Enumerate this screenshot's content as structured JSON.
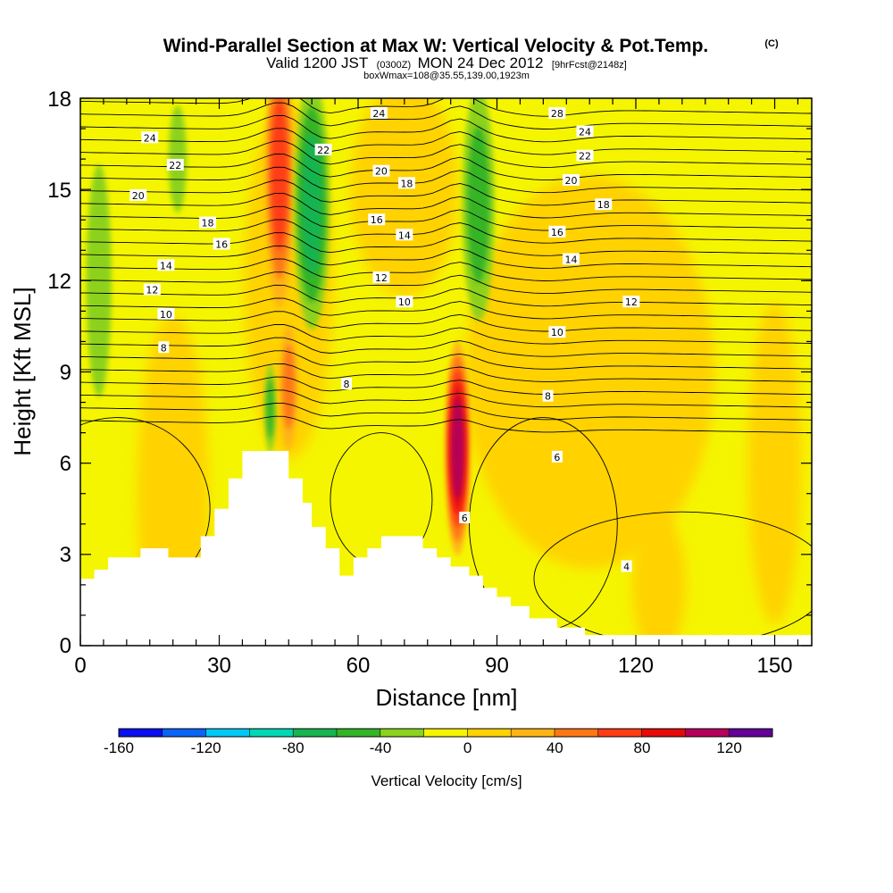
{
  "header": {
    "title": "Wind-Parallel Section at Max W: Vertical Velocity & Pot.Temp.",
    "title_mark": "(C)",
    "valid_prefix": "Valid 1200 JST",
    "valid_zulu": "(0300Z)",
    "valid_date": "MON 24 Dec 2012",
    "valid_fcst": "[9hrFcst@2148z]",
    "box_info": "boxWmax=108@35.55,139.00,1923m"
  },
  "chart_data": {
    "type": "heatmap",
    "xlabel": "Distance [nm]",
    "ylabel": "Height [Kft MSL]",
    "xlim": [
      0,
      158
    ],
    "ylim": [
      0,
      18
    ],
    "x_ticks": [
      "0",
      "30",
      "60",
      "90",
      "120",
      "150"
    ],
    "y_ticks": [
      "0",
      "3",
      "6",
      "9",
      "12",
      "15",
      "18"
    ],
    "colorbar": {
      "label": "Vertical Velocity [cm/s]",
      "tick_labels": [
        "-160",
        "-120",
        "-80",
        "-40",
        "0",
        "40",
        "80",
        "120"
      ],
      "levels": [
        -160,
        -140,
        -120,
        -100,
        -80,
        -60,
        -40,
        -20,
        0,
        20,
        40,
        60,
        80,
        100,
        120,
        140
      ],
      "colors": [
        "#0a10f0",
        "#0a64f5",
        "#00c8f5",
        "#00d8b4",
        "#18b450",
        "#34b428",
        "#8cd21e",
        "#f5f500",
        "#ffd200",
        "#ffb414",
        "#ff7814",
        "#ff3c14",
        "#e60a0a",
        "#b4005a",
        "#640096"
      ]
    },
    "terrain_kft": [
      [
        0,
        2.2
      ],
      [
        3,
        2.5
      ],
      [
        6,
        2.9
      ],
      [
        13,
        3.2
      ],
      [
        19,
        2.9
      ],
      [
        26,
        3.6
      ],
      [
        29,
        4.5
      ],
      [
        32,
        5.5
      ],
      [
        35,
        6.4
      ],
      [
        45,
        5.5
      ],
      [
        48,
        4.7
      ],
      [
        50,
        3.9
      ],
      [
        53,
        3.2
      ],
      [
        56,
        2.3
      ],
      [
        59,
        2.9
      ],
      [
        62,
        3.2
      ],
      [
        65,
        3.6
      ],
      [
        74,
        3.2
      ],
      [
        77,
        2.9
      ],
      [
        80,
        2.6
      ],
      [
        84,
        2.3
      ],
      [
        87,
        1.9
      ],
      [
        90,
        1.6
      ],
      [
        93,
        1.3
      ],
      [
        97,
        0.9
      ],
      [
        103,
        0.6
      ],
      [
        109,
        0.35
      ],
      [
        158,
        0.35
      ]
    ],
    "velocity_features": [
      {
        "x": 81.5,
        "y_kft": 6.5,
        "peak_cms": 108
      },
      {
        "x": 43,
        "y_kft": 15.5,
        "peak_cms": 70
      },
      {
        "x": 45,
        "y_kft": 8.5,
        "peak_cms": 55
      },
      {
        "x": 50,
        "y_kft": 14.5,
        "peak_cms": -60
      },
      {
        "x": 86,
        "y_kft": 14.5,
        "peak_cms": -55
      },
      {
        "x": 4,
        "y_kft": 12,
        "peak_cms": -35
      },
      {
        "x": 21,
        "y_kft": 16,
        "peak_cms": -35
      },
      {
        "x": 41,
        "y_kft": 7.8,
        "peak_cms": -45
      }
    ],
    "theta_contours": [
      {
        "value": "8",
        "y_kft": 9.6
      },
      {
        "value": "10",
        "y_kft": 10.8
      },
      {
        "value": "12",
        "y_kft": 11.9
      },
      {
        "value": "14",
        "y_kft": 12.8
      },
      {
        "value": "16",
        "y_kft": 13.7
      },
      {
        "value": "18",
        "y_kft": 14.6
      },
      {
        "value": "20",
        "y_kft": 15.4
      },
      {
        "value": "22",
        "y_kft": 16.2
      },
      {
        "value": "24",
        "y_kft": 17.0
      }
    ],
    "contour_labels": [
      {
        "text": "24",
        "x": 15,
        "y": 16.7
      },
      {
        "text": "22",
        "x": 20.5,
        "y": 15.8
      },
      {
        "text": "20",
        "x": 12.5,
        "y": 14.8
      },
      {
        "text": "18",
        "x": 27.5,
        "y": 13.9
      },
      {
        "text": "16",
        "x": 30.5,
        "y": 13.2
      },
      {
        "text": "14",
        "x": 18.5,
        "y": 12.5
      },
      {
        "text": "12",
        "x": 15.5,
        "y": 11.7
      },
      {
        "text": "10",
        "x": 18.5,
        "y": 10.9
      },
      {
        "text": "8",
        "x": 18,
        "y": 9.8
      },
      {
        "text": "22",
        "x": 52.5,
        "y": 16.3
      },
      {
        "text": "24",
        "x": 64.5,
        "y": 17.5
      },
      {
        "text": "20",
        "x": 65,
        "y": 15.6
      },
      {
        "text": "18",
        "x": 70.5,
        "y": 15.2
      },
      {
        "text": "16",
        "x": 64,
        "y": 14.0
      },
      {
        "text": "14",
        "x": 70,
        "y": 13.5
      },
      {
        "text": "12",
        "x": 65,
        "y": 12.1
      },
      {
        "text": "10",
        "x": 70,
        "y": 11.3
      },
      {
        "text": "8",
        "x": 57.5,
        "y": 8.6
      },
      {
        "text": "28",
        "x": 103,
        "y": 17.5
      },
      {
        "text": "24",
        "x": 109,
        "y": 16.9
      },
      {
        "text": "22",
        "x": 109,
        "y": 16.1
      },
      {
        "text": "20",
        "x": 106,
        "y": 15.3
      },
      {
        "text": "18",
        "x": 113,
        "y": 14.5
      },
      {
        "text": "16",
        "x": 103,
        "y": 13.6
      },
      {
        "text": "14",
        "x": 106,
        "y": 12.7
      },
      {
        "text": "12",
        "x": 119,
        "y": 11.3
      },
      {
        "text": "10",
        "x": 103,
        "y": 10.3
      },
      {
        "text": "8",
        "x": 101,
        "y": 8.2
      },
      {
        "text": "6",
        "x": 103,
        "y": 6.2
      },
      {
        "text": "6",
        "x": 83,
        "y": 4.2
      },
      {
        "text": "4",
        "x": 118,
        "y": 2.6
      }
    ]
  }
}
